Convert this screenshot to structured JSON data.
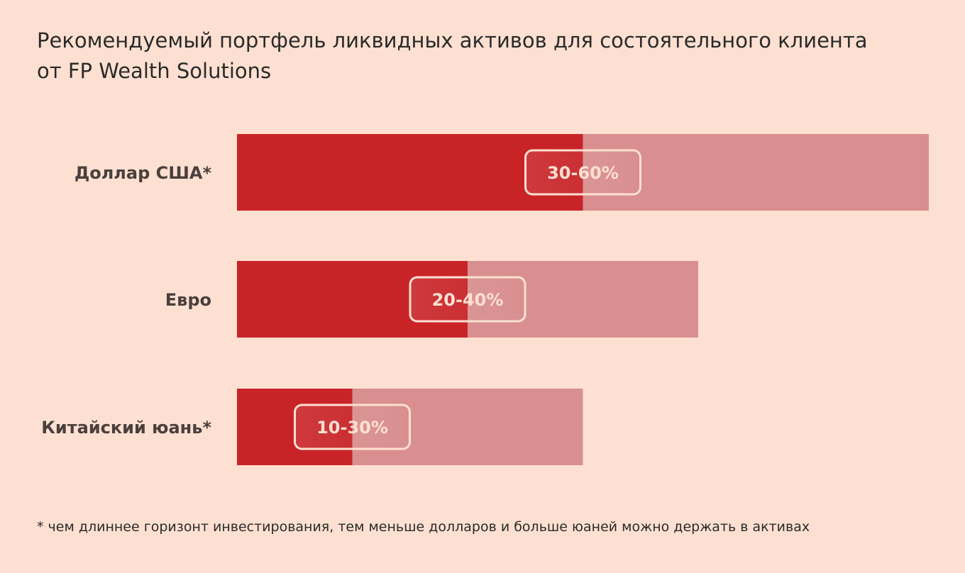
{
  "title": {
    "line1": "Рекомендуемый портфель ликвидных активов для состоятельного клиента",
    "line2": "от FP Wealth Solutions"
  },
  "footnote": "* чем длиннее горизонт инвестирования, тем меньше долларов и больше юаней можно держать в активах",
  "colors": {
    "background": "#fde0d1",
    "bar_min": "#c82428",
    "bar_range": "#d98f8f",
    "label_text": "#4a3f3c",
    "badge_border": "#fde0d1",
    "badge_text": "#fde0d1"
  },
  "chart_data": {
    "type": "bar",
    "orientation": "horizontal",
    "categories": [
      "Доллар США*",
      "Евро",
      "Китайский юань*"
    ],
    "series": [
      {
        "values": [
          30,
          20,
          10
        ]
      },
      {
        "values": [
          60,
          40,
          30
        ]
      }
    ],
    "labels": [
      "30-60%",
      "20-40%",
      "10-30%"
    ],
    "xlim": [
      0,
      60
    ],
    "grid": false
  }
}
